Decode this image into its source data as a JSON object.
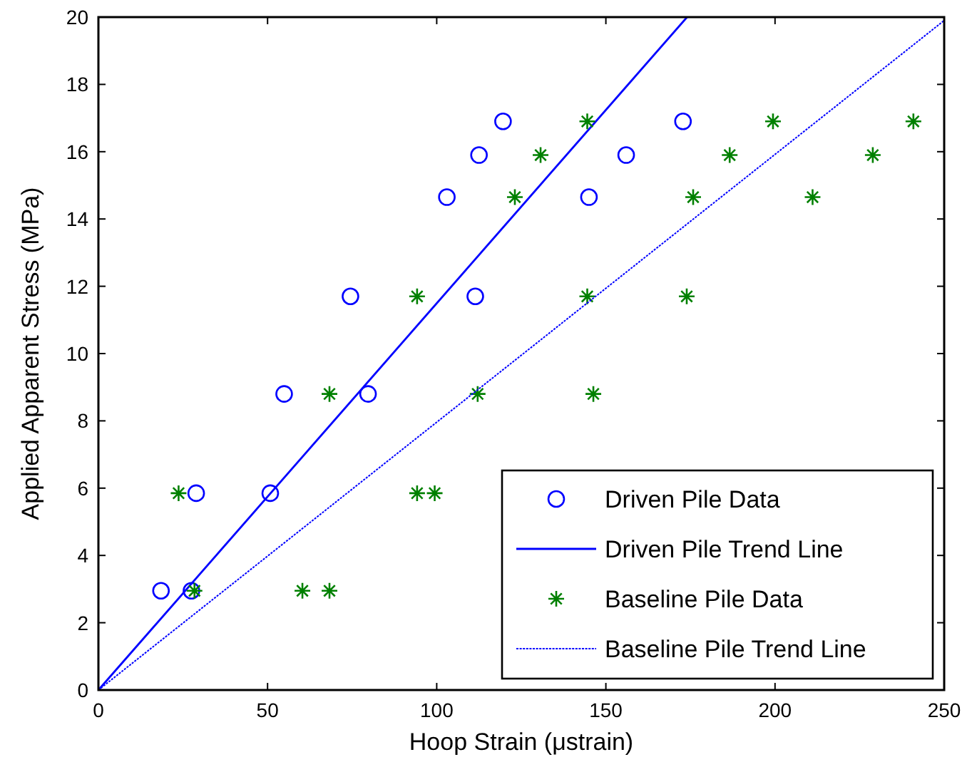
{
  "chart_data": {
    "type": "scatter",
    "xlabel": "Hoop Strain (μstrain)",
    "ylabel": "Applied Apparent Stress (MPa)",
    "xlim": [
      0,
      250
    ],
    "ylim": [
      0,
      20
    ],
    "xticks": [
      0,
      50,
      100,
      150,
      200,
      250
    ],
    "yticks": [
      0,
      2,
      4,
      6,
      8,
      10,
      12,
      14,
      16,
      18,
      20
    ],
    "grid": false,
    "legend": "bottom right",
    "series": [
      {
        "name": "Driven Pile Data",
        "marker": "circle",
        "color": "#0000ff",
        "x": [
          18.5,
          27.5,
          28.9,
          50.8,
          54.9,
          79.7,
          74.5,
          111.4,
          103,
          112.5,
          119.6,
          145,
          156,
          172.8
        ],
        "values": [
          2.95,
          2.95,
          5.85,
          5.85,
          8.8,
          8.8,
          11.7,
          11.7,
          14.65,
          15.9,
          16.9,
          14.65,
          15.9,
          16.9
        ]
      },
      {
        "name": "Driven Pile Trend Line",
        "type": "line",
        "line_style": "solid",
        "color": "#0000ff",
        "x": [
          0,
          174
        ],
        "values": [
          0,
          20
        ]
      },
      {
        "name": "Baseline Pile Data",
        "marker": "cross",
        "color": "#008000",
        "x": [
          23.7,
          28.4,
          60.3,
          68.3,
          68.3,
          94.2,
          94.2,
          99.4,
          112.1,
          123.1,
          130.7,
          144.5,
          144.5,
          146.3,
          175.8,
          173.9,
          186.6,
          199.4,
          211.1,
          228.9,
          240.9
        ],
        "values": [
          5.85,
          2.95,
          2.95,
          2.95,
          8.8,
          11.7,
          5.85,
          5.85,
          8.8,
          14.65,
          15.9,
          16.9,
          11.7,
          8.8,
          14.65,
          11.7,
          15.9,
          16.9,
          14.65,
          15.9,
          16.9
        ]
      },
      {
        "name": "Baseline Pile Trend Line",
        "type": "line",
        "line_style": "dotted",
        "color": "#0000ff",
        "x": [
          0,
          250
        ],
        "values": [
          0,
          19.9
        ]
      }
    ]
  }
}
